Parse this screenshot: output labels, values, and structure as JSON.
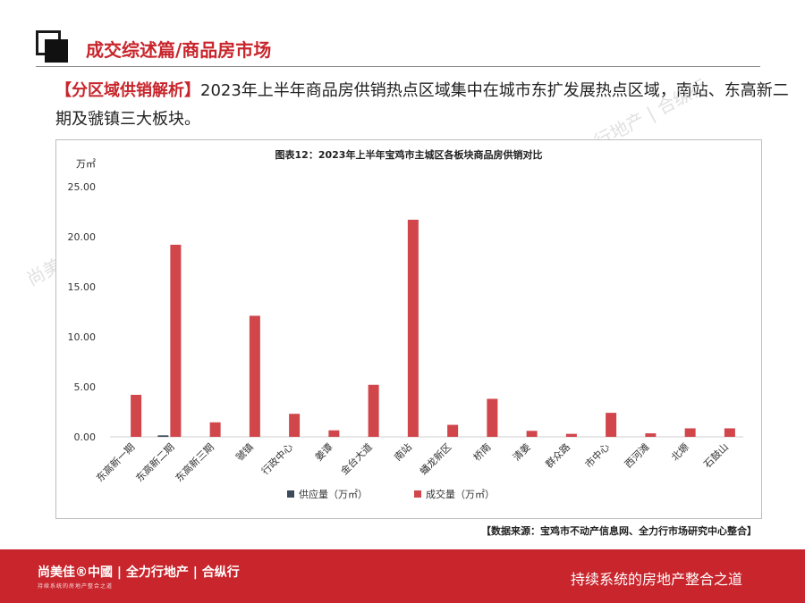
{
  "header": {
    "section_title": "成交综述篇/商品房市场",
    "intro_tag": "【分区域供销解析】",
    "intro_text": "2023年上半年商品房供销热点区域集中在城市东扩发展热点区域，南站、东高新二期及虢镇三大板块。"
  },
  "chart_data": {
    "type": "bar",
    "title": "图表12：2023年上半年宝鸡市主城区各板块商品房供销对比",
    "ylabel": "万㎡",
    "ylim": [
      0,
      25
    ],
    "yticks": [
      "0.00",
      "5.00",
      "10.00",
      "15.00",
      "20.00",
      "25.00"
    ],
    "categories": [
      "东高新一期",
      "东高新二期",
      "东高新三期",
      "虢镇",
      "行政中心",
      "姜谭",
      "金台大道",
      "南站",
      "蟠龙新区",
      "桥南",
      "清姜",
      "群众路",
      "市中心",
      "西河滩",
      "北塬",
      "石鼓山"
    ],
    "series": [
      {
        "name": "供应量（万㎡）",
        "color": "#3d4a5c",
        "values": [
          0,
          0.15,
          0,
          0,
          0,
          0,
          0,
          0,
          0,
          0,
          0,
          0,
          0,
          0,
          0,
          0
        ]
      },
      {
        "name": "成交量（万㎡）",
        "color": "#d0464b",
        "values": [
          4.2,
          19.2,
          1.45,
          12.1,
          2.3,
          0.65,
          5.2,
          21.7,
          1.2,
          3.8,
          0.6,
          0.3,
          2.4,
          0.35,
          0.85,
          0.85
        ]
      }
    ],
    "legend_position": "bottom",
    "grid": false
  },
  "source_note": "【数据来源：宝鸡市不动产信息网、全力行市场研究中心整合】",
  "footer": {
    "brand": "尚美佳®中國 | 全力行地产 | 合纵行",
    "brand_sub": "持续系统的房地产整合之道",
    "slogan": "持续系统的房地产整合之道"
  },
  "watermarks": [
    "尚美佳®中國 | 全力行地产 | 合纵行"
  ]
}
